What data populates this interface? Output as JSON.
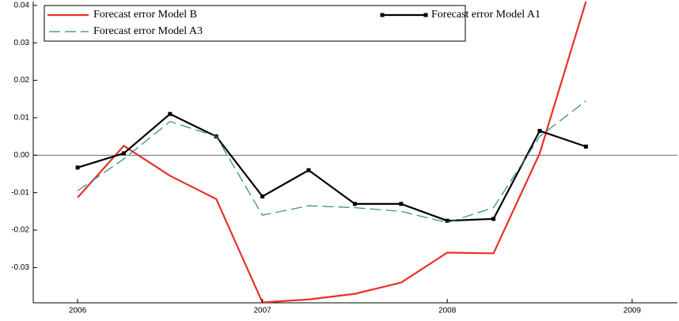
{
  "chart_data": {
    "type": "line",
    "x": [
      2006,
      2006.25,
      2006.5,
      2006.75,
      2007,
      2007.25,
      2007.5,
      2007.75,
      2008,
      2008.25,
      2008.5,
      2008.75
    ],
    "series": [
      {
        "name": "Forecast  error Model B",
        "color": "#e8302a",
        "values": [
          -0.0113,
          0.0025,
          -0.0055,
          -0.0117,
          -0.0393,
          -0.0385,
          -0.037,
          -0.034,
          -0.026,
          -0.0262,
          0.0005,
          0.041
        ]
      },
      {
        "name": "Forecast error Model A1",
        "color": "#000000",
        "values": [
          -0.0033,
          0.0005,
          0.011,
          0.005,
          -0.011,
          -0.004,
          -0.013,
          -0.013,
          -0.0175,
          -0.017,
          0.0065,
          0.0023
        ]
      },
      {
        "name": "Forecast error Model A3",
        "color": "#2a8a8a",
        "values": [
          -0.0095,
          -0.001,
          0.009,
          0.005,
          -0.016,
          -0.0135,
          -0.014,
          -0.015,
          -0.018,
          -0.014,
          0.005,
          0.0145
        ]
      }
    ],
    "xlim": [
      2005.76,
      2009.245
    ],
    "xticks": [
      2006,
      2007,
      2008,
      2009
    ],
    "ylim": [
      -0.0394,
      0.041
    ],
    "yticks": [
      -0.03,
      -0.02,
      -0.01,
      {
        "value": 0,
        "label": "0.00"
      },
      0.01,
      0.02,
      0.03,
      0.04
    ]
  }
}
